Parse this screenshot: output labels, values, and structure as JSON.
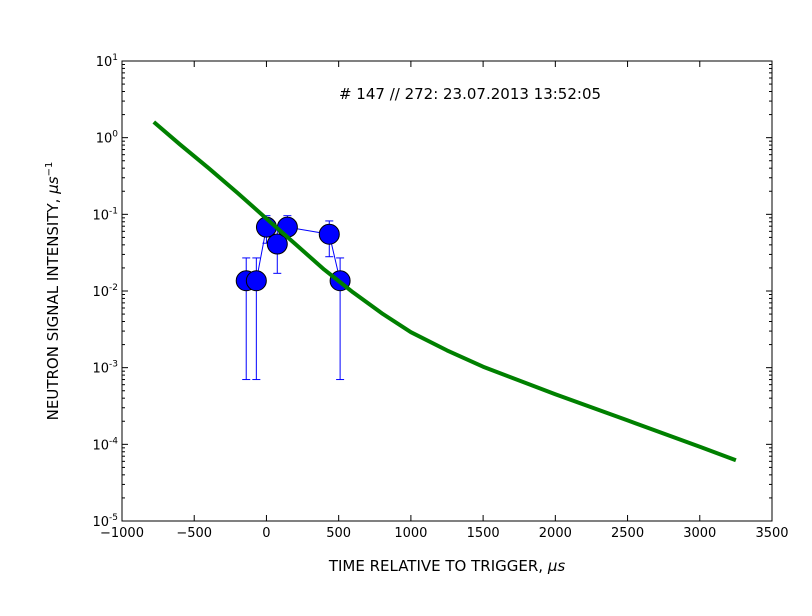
{
  "chart_data": {
    "type": "line",
    "title": "",
    "annotation": "# 147 // 272: 23.07.2013 13:52:05",
    "xlabel_main": "TIME RELATIVE TO TRIGGER, ",
    "xlabel_unit": "μs",
    "ylabel_main": "NEUTRON SIGNAL INTENSITY, ",
    "ylabel_unit": "μs",
    "ylabel_exp": "−1",
    "xlim": [
      -1000,
      3500
    ],
    "ylim": [
      1e-05,
      10
    ],
    "yscale": "log",
    "grid": false,
    "x_ticks": [
      -1000,
      -500,
      0,
      500,
      1000,
      1500,
      2000,
      2500,
      3000,
      3500
    ],
    "x_tick_labels": [
      "−1000",
      "−500",
      "0",
      "500",
      "1000",
      "1500",
      "2000",
      "2500",
      "3000",
      "3500"
    ],
    "y_ticks": [
      {
        "exp": -5,
        "label_base": "10",
        "label_exp": "-5"
      },
      {
        "exp": -4,
        "label_base": "10",
        "label_exp": "-4"
      },
      {
        "exp": -3,
        "label_base": "10",
        "label_exp": "-3"
      },
      {
        "exp": -2,
        "label_base": "10",
        "label_exp": "-2"
      },
      {
        "exp": -1,
        "label_base": "10",
        "label_exp": "-1"
      },
      {
        "exp": 0,
        "label_base": "10",
        "label_exp": "0"
      },
      {
        "exp": 1,
        "label_base": "10",
        "label_exp": "1"
      }
    ],
    "series": [
      {
        "kind": "points",
        "color": "#0000ff",
        "x": [
          -140,
          -70,
          0,
          75,
          145,
          435,
          510
        ],
        "y": [
          0.0136,
          0.0136,
          0.068,
          0.041,
          0.068,
          0.055,
          0.0136
        ],
        "yerr_low": [
          0.0007,
          0.0007,
          0.042,
          0.017,
          0.048,
          0.028,
          0.0007
        ],
        "yerr_high": [
          0.027,
          0.027,
          0.096,
          0.065,
          0.096,
          0.082,
          0.027
        ]
      },
      {
        "kind": "curve",
        "color": "#008000",
        "x": [
          -780,
          -600,
          -400,
          -200,
          0,
          200,
          400,
          500,
          600,
          800,
          1000,
          1250,
          1500,
          2000,
          2500,
          3000,
          3250
        ],
        "y": [
          1.6,
          0.82,
          0.4,
          0.19,
          0.088,
          0.041,
          0.019,
          0.0135,
          0.0096,
          0.0051,
          0.0029,
          0.00168,
          0.00103,
          0.00045,
          0.000205,
          9.3e-05,
          6.2e-05
        ]
      }
    ]
  }
}
